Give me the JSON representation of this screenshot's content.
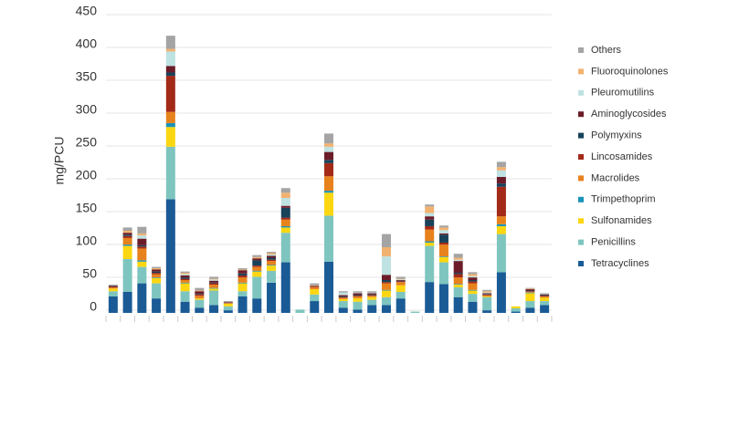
{
  "chart_data": {
    "type": "bar",
    "stacked": true,
    "ylabel": "mg/PCU",
    "categories": [
      null,
      null,
      null,
      null,
      null,
      null,
      null,
      null,
      null,
      null,
      null,
      null,
      null,
      null,
      null,
      null,
      null,
      null,
      null,
      null,
      null,
      null,
      null,
      null,
      null,
      null,
      null,
      null,
      null,
      null,
      null
    ],
    "ylim": [
      0,
      450
    ],
    "yticks": [
      0,
      50,
      100,
      150,
      200,
      250,
      300,
      350,
      400,
      450
    ],
    "grid": true,
    "legend": "right",
    "series": [
      {
        "name": "Tetracyclines",
        "color": "#1a5b96",
        "values": [
          25,
          32,
          45,
          22,
          173,
          17,
          8,
          12,
          4,
          25,
          22,
          46,
          77,
          0,
          18,
          78,
          8,
          5,
          12,
          12,
          22,
          0,
          47,
          44,
          24,
          17,
          4,
          62,
          2,
          8,
          12
        ]
      },
      {
        "name": "Penicillins",
        "color": "#7fc5bf",
        "values": [
          8,
          50,
          25,
          23,
          80,
          16,
          12,
          22,
          6,
          8,
          33,
          18,
          45,
          5,
          10,
          70,
          10,
          12,
          8,
          12,
          10,
          2,
          55,
          33,
          15,
          12,
          20,
          58,
          5,
          10,
          6
        ]
      },
      {
        "name": "Sulfonamides",
        "color": "#fcd611",
        "values": [
          4,
          20,
          8,
          8,
          30,
          12,
          2,
          3,
          4,
          12,
          8,
          8,
          8,
          0,
          8,
          35,
          3,
          5,
          4,
          10,
          10,
          0,
          5,
          8,
          4,
          5,
          1,
          12,
          3,
          12,
          5
        ]
      },
      {
        "name": "Trimpethoprim",
        "color": "#1b93b8",
        "values": [
          0,
          2,
          2,
          1,
          6,
          1,
          0,
          1,
          0,
          1,
          1,
          1,
          2,
          0,
          0,
          3,
          0,
          0,
          0,
          1,
          0,
          0,
          2,
          1,
          1,
          1,
          0,
          3,
          0,
          1,
          0
        ]
      },
      {
        "name": "Macrolides",
        "color": "#e8821c",
        "values": [
          2,
          10,
          18,
          5,
          17,
          4,
          4,
          5,
          1,
          8,
          6,
          6,
          10,
          0,
          3,
          22,
          2,
          3,
          2,
          10,
          5,
          0,
          18,
          18,
          10,
          10,
          2,
          12,
          0,
          1,
          2
        ]
      },
      {
        "name": "Lincosamides",
        "color": "#a32a18",
        "values": [
          0,
          3,
          3,
          2,
          55,
          2,
          2,
          2,
          0,
          3,
          2,
          2,
          3,
          0,
          1,
          20,
          1,
          1,
          1,
          2,
          1,
          0,
          5,
          3,
          5,
          3,
          1,
          45,
          0,
          1,
          1
        ]
      },
      {
        "name": "Polymyxins",
        "color": "#17425a",
        "values": [
          0,
          2,
          2,
          2,
          5,
          2,
          1,
          1,
          0,
          3,
          8,
          3,
          15,
          0,
          0,
          5,
          1,
          1,
          1,
          3,
          1,
          0,
          10,
          12,
          2,
          2,
          1,
          5,
          0,
          1,
          1
        ]
      },
      {
        "name": "Aminoglycosides",
        "color": "#6b1c28",
        "values": [
          2,
          3,
          10,
          3,
          10,
          3,
          4,
          3,
          1,
          5,
          3,
          3,
          3,
          0,
          1,
          12,
          2,
          3,
          2,
          8,
          1,
          0,
          5,
          2,
          18,
          4,
          1,
          10,
          0,
          2,
          1
        ]
      },
      {
        "name": "Pleuromutilins",
        "color": "#bfe2e2",
        "values": [
          0,
          0,
          5,
          0,
          22,
          2,
          0,
          2,
          0,
          0,
          0,
          2,
          12,
          0,
          0,
          8,
          4,
          1,
          1,
          28,
          1,
          0,
          5,
          5,
          2,
          2,
          1,
          10,
          0,
          0,
          0
        ]
      },
      {
        "name": "Fluoroquinolones",
        "color": "#f2b270",
        "values": [
          0,
          3,
          3,
          2,
          4,
          2,
          1,
          1,
          0,
          1,
          2,
          2,
          8,
          0,
          1,
          5,
          0,
          0,
          0,
          14,
          1,
          0,
          10,
          4,
          3,
          3,
          2,
          5,
          0,
          1,
          0
        ]
      },
      {
        "name": "Others",
        "color": "#a4a4a4",
        "values": [
          2,
          5,
          10,
          2,
          20,
          2,
          4,
          3,
          2,
          2,
          3,
          2,
          7,
          0,
          3,
          15,
          2,
          2,
          2,
          20,
          3,
          0,
          3,
          3,
          6,
          3,
          2,
          8,
          0,
          1,
          2
        ]
      }
    ]
  }
}
